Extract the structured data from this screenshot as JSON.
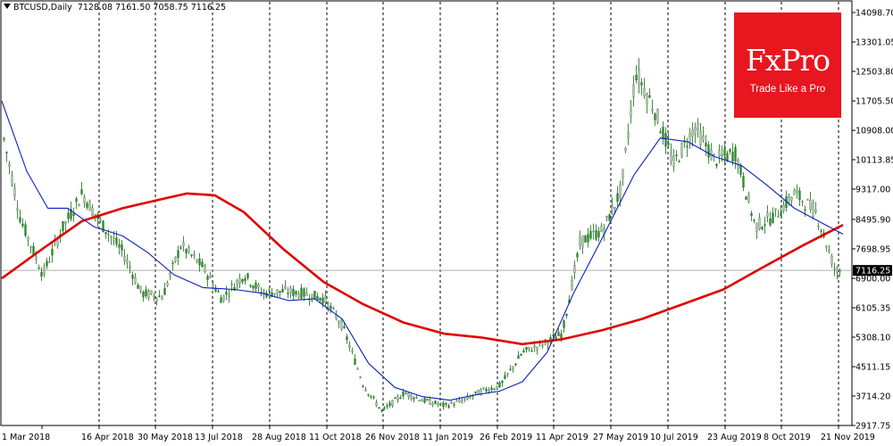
{
  "header": {
    "symbol": "BTCUSD,Daily",
    "ohlc": "7128.08 7161.50 7058.75 7116.25"
  },
  "logo": {
    "brand": "FxPro",
    "tagline": "Trade Like a Pro"
  },
  "icons": {
    "dropdown": "triangle-down-icon"
  },
  "colors": {
    "ma_long": "#e00000",
    "ma_short": "#0a1fbf",
    "candle": "#1b6b1b",
    "grid": "#000000",
    "price_line": "#b0b0b0"
  },
  "chart_data": {
    "type": "line",
    "title": "",
    "xlabel": "",
    "ylabel": "",
    "ylim": [
      2917.75,
      14098.7
    ],
    "x_ticks": [
      "1 Mar 2018",
      "16 Apr 2018",
      "30 May 2018",
      "13 Jul 2018",
      "28 Aug 2018",
      "11 Oct 2018",
      "26 Nov 2018",
      "11 Jan 2019",
      "26 Feb 2019",
      "11 Apr 2019",
      "27 May 2019",
      "10 Jul 2019",
      "23 Aug 2019",
      "8 Oct 2019",
      "21 Nov 2019"
    ],
    "y_ticks": [
      "14098.70",
      "13301.05",
      "12503.80",
      "11705.50",
      "10908.00",
      "10113.85",
      "9317.00",
      "8495.90",
      "7698.95",
      "6900.00",
      "6105.35",
      "5308.10",
      "4511.15",
      "3714.20",
      "2917.75"
    ],
    "last_price": "7116.25",
    "grid": true,
    "series": [
      {
        "name": "",
        "color": "#e00000",
        "x": [
          "2018-03-01",
          "2018-04-01",
          "2018-05-01",
          "2018-06-01",
          "2018-07-01",
          "2018-07-20",
          "2018-08-10",
          "2018-09-01",
          "2018-10-01",
          "2018-11-01",
          "2018-12-01",
          "2019-01-01",
          "2019-02-01",
          "2019-03-01",
          "2019-04-01",
          "2019-05-01",
          "2019-06-01",
          "2019-07-01",
          "2019-08-01",
          "2019-09-01",
          "2019-10-01",
          "2019-11-01",
          "2019-12-01"
        ],
        "values": [
          6900,
          7700,
          8450,
          8800,
          9050,
          9200,
          9150,
          8700,
          7700,
          6800,
          6200,
          5700,
          5400,
          5300,
          5120,
          5250,
          5500,
          5800,
          6200,
          6600,
          7200,
          7800,
          8350
        ]
      },
      {
        "name": "",
        "color": "#0a1fbf",
        "x": [
          "2018-03-01",
          "2018-03-20",
          "2018-04-05",
          "2018-04-20",
          "2018-05-10",
          "2018-06-01",
          "2018-06-20",
          "2018-07-10",
          "2018-08-01",
          "2018-08-25",
          "2018-09-15",
          "2018-10-05",
          "2018-10-25",
          "2018-11-15",
          "2018-12-05",
          "2018-12-25",
          "2019-01-15",
          "2019-02-05",
          "2019-02-25",
          "2019-03-15",
          "2019-04-01",
          "2019-04-20",
          "2019-05-10",
          "2019-06-01",
          "2019-06-25",
          "2019-07-15",
          "2019-08-05",
          "2019-08-25",
          "2019-09-15",
          "2019-10-05",
          "2019-10-25",
          "2019-11-15",
          "2019-12-01"
        ],
        "values": [
          11700,
          9800,
          8800,
          8800,
          8300,
          8050,
          7600,
          7000,
          6650,
          6600,
          6500,
          6300,
          6350,
          5800,
          4600,
          3950,
          3700,
          3600,
          3750,
          3850,
          4100,
          4900,
          6500,
          8000,
          9700,
          10700,
          10600,
          10200,
          9950,
          9400,
          8800,
          8400,
          8100
        ]
      },
      {
        "name": "",
        "type": "candles",
        "color": "#1b6b1b",
        "x": [
          "2018-03-01",
          "2018-03-15",
          "2018-04-01",
          "2018-04-15",
          "2018-05-01",
          "2018-05-15",
          "2018-06-01",
          "2018-06-15",
          "2018-07-01",
          "2018-07-15",
          "2018-08-01",
          "2018-08-15",
          "2018-09-01",
          "2018-09-15",
          "2018-10-01",
          "2018-10-15",
          "2018-11-01",
          "2018-11-15",
          "2018-12-01",
          "2018-12-15",
          "2019-01-01",
          "2019-01-15",
          "2019-02-01",
          "2019-02-15",
          "2019-03-01",
          "2019-03-15",
          "2019-04-01",
          "2019-04-15",
          "2019-05-01",
          "2019-05-15",
          "2019-06-01",
          "2019-06-15",
          "2019-06-26",
          "2019-07-10",
          "2019-07-25",
          "2019-08-10",
          "2019-08-25",
          "2019-09-10",
          "2019-09-25",
          "2019-10-10",
          "2019-10-25",
          "2019-11-10",
          "2019-11-25",
          "2019-12-01"
        ],
        "values": [
          10900,
          8500,
          7000,
          8200,
          9200,
          8400,
          7600,
          6500,
          6400,
          7800,
          7200,
          6350,
          7000,
          6500,
          6550,
          6500,
          6350,
          5600,
          4000,
          3300,
          3800,
          3600,
          3450,
          3600,
          3850,
          4000,
          4900,
          5100,
          5400,
          7900,
          8200,
          9300,
          12500,
          11500,
          10000,
          11000,
          10100,
          10300,
          8300,
          8600,
          9200,
          8700,
          7100,
          7116
        ]
      }
    ]
  }
}
